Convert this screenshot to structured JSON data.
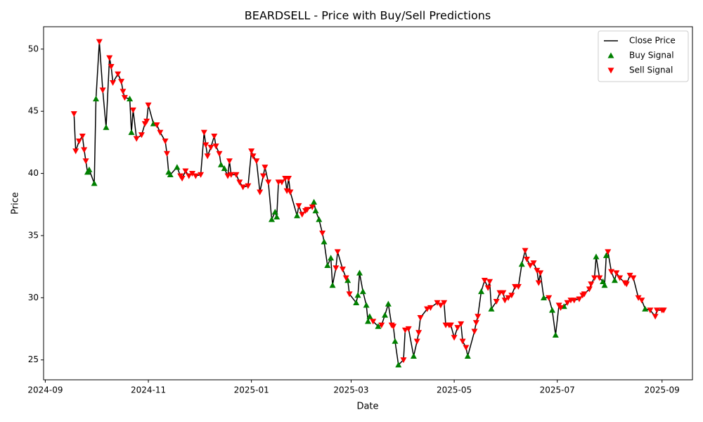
{
  "chart_data": {
    "type": "line",
    "title": "BEARDSELL - Price with Buy/Sell Predictions",
    "x_label": "Date",
    "y_label": "Price",
    "xlim": [
      "2024-08-31",
      "2025-09-19"
    ],
    "xticks": [
      {
        "value": "2024-09-01",
        "label": "2024-09"
      },
      {
        "value": "2024-11-01",
        "label": "2024-11"
      },
      {
        "value": "2025-01-01",
        "label": "2025-01"
      },
      {
        "value": "2025-03-01",
        "label": "2025-03"
      },
      {
        "value": "2025-05-01",
        "label": "2025-05"
      },
      {
        "value": "2025-07-01",
        "label": "2025-07"
      },
      {
        "value": "2025-09-01",
        "label": "2025-09"
      }
    ],
    "ylim": [
      23.4,
      51.8
    ],
    "yticks": [
      25,
      30,
      35,
      40,
      45,
      50
    ],
    "legend": "upper right",
    "grid": false,
    "series": [
      {
        "name": "Close Price",
        "type": "line",
        "color": "#000000",
        "x": [
          "2024-09-18",
          "2024-09-19",
          "2024-09-21",
          "2024-09-23",
          "2024-09-24",
          "2024-09-25",
          "2024-09-26",
          "2024-09-27",
          "2024-09-30",
          "2024-10-01",
          "2024-10-03",
          "2024-10-05",
          "2024-10-07",
          "2024-10-09",
          "2024-10-10",
          "2024-10-11",
          "2024-10-14",
          "2024-10-16",
          "2024-10-17",
          "2024-10-18",
          "2024-10-21",
          "2024-10-22",
          "2024-10-23",
          "2024-10-25",
          "2024-10-28",
          "2024-10-30",
          "2024-10-31",
          "2024-11-01",
          "2024-11-04",
          "2024-11-06",
          "2024-11-08",
          "2024-11-11",
          "2024-11-12",
          "2024-11-13",
          "2024-11-14",
          "2024-11-18",
          "2024-11-20",
          "2024-11-21",
          "2024-11-23",
          "2024-11-25",
          "2024-11-27",
          "2024-11-29",
          "2024-12-02",
          "2024-12-04",
          "2024-12-05",
          "2024-12-06",
          "2024-12-08",
          "2024-12-10",
          "2024-12-11",
          "2024-12-13",
          "2024-12-14",
          "2024-12-16",
          "2024-12-18",
          "2024-12-19",
          "2024-12-20",
          "2024-12-23",
          "2024-12-25",
          "2024-12-27",
          "2024-12-30",
          "2025-01-01",
          "2025-01-02",
          "2025-01-04",
          "2025-01-06",
          "2025-01-08",
          "2025-01-09",
          "2025-01-11",
          "2025-01-13",
          "2025-01-15",
          "2025-01-16",
          "2025-01-17",
          "2025-01-19",
          "2025-01-21",
          "2025-01-22",
          "2025-01-23",
          "2025-01-24",
          "2025-01-28",
          "2025-01-29",
          "2025-01-31",
          "2025-02-02",
          "2025-02-03",
          "2025-02-06",
          "2025-02-07",
          "2025-02-08",
          "2025-02-10",
          "2025-02-12",
          "2025-02-13",
          "2025-02-15",
          "2025-02-17",
          "2025-02-18",
          "2025-02-20",
          "2025-02-21",
          "2025-02-24",
          "2025-02-26",
          "2025-02-27",
          "2025-02-28",
          "2025-03-04",
          "2025-03-05",
          "2025-03-06",
          "2025-03-08",
          "2025-03-10",
          "2025-03-11",
          "2025-03-12",
          "2025-03-14",
          "2025-03-17",
          "2025-03-19",
          "2025-03-21",
          "2025-03-23",
          "2025-03-25",
          "2025-03-26",
          "2025-03-27",
          "2025-03-29",
          "2025-04-01",
          "2025-04-02",
          "2025-04-04",
          "2025-04-07",
          "2025-04-09",
          "2025-04-10",
          "2025-04-11",
          "2025-04-15",
          "2025-04-17",
          "2025-04-21",
          "2025-04-23",
          "2025-04-25",
          "2025-04-26",
          "2025-04-28",
          "2025-04-29",
          "2025-05-01",
          "2025-05-03",
          "2025-05-05",
          "2025-05-06",
          "2025-05-08",
          "2025-05-09",
          "2025-05-13",
          "2025-05-14",
          "2025-05-15",
          "2025-05-17",
          "2025-05-19",
          "2025-05-21",
          "2025-05-22",
          "2025-05-23",
          "2025-05-26",
          "2025-05-28",
          "2025-05-30",
          "2025-05-31",
          "2025-06-02",
          "2025-06-04",
          "2025-06-06",
          "2025-06-08",
          "2025-06-10",
          "2025-06-12",
          "2025-06-13",
          "2025-06-15",
          "2025-06-17",
          "2025-06-19",
          "2025-06-20",
          "2025-06-21",
          "2025-06-23",
          "2025-06-26",
          "2025-06-28",
          "2025-06-30",
          "2025-07-02",
          "2025-07-03",
          "2025-07-05",
          "2025-07-07",
          "2025-07-09",
          "2025-07-11",
          "2025-07-14",
          "2025-07-16",
          "2025-07-17",
          "2025-07-20",
          "2025-07-21",
          "2025-07-23",
          "2025-07-24",
          "2025-07-26",
          "2025-07-28",
          "2025-07-29",
          "2025-07-30",
          "2025-07-31",
          "2025-08-02",
          "2025-08-04",
          "2025-08-05",
          "2025-08-07",
          "2025-08-10",
          "2025-08-11",
          "2025-08-13",
          "2025-08-15",
          "2025-08-18",
          "2025-08-20",
          "2025-08-22",
          "2025-08-25",
          "2025-08-28",
          "2025-08-29",
          "2025-09-01",
          "2025-09-02"
        ],
        "values": [
          44.8,
          41.8,
          42.6,
          43.0,
          41.9,
          41.0,
          40.1,
          40.3,
          39.2,
          46.0,
          50.6,
          46.7,
          43.7,
          49.3,
          48.6,
          47.3,
          48.0,
          47.4,
          46.6,
          46.1,
          46.0,
          43.3,
          45.1,
          42.8,
          43.1,
          44.0,
          44.2,
          45.5,
          44.0,
          43.9,
          43.3,
          42.6,
          41.6,
          40.1,
          39.9,
          40.5,
          39.8,
          39.6,
          40.2,
          39.8,
          40.0,
          39.8,
          39.9,
          43.3,
          42.3,
          41.4,
          42.1,
          43.0,
          42.2,
          41.6,
          40.7,
          40.4,
          39.8,
          41.0,
          39.9,
          39.9,
          39.3,
          38.9,
          39.0,
          41.8,
          41.4,
          41.0,
          38.5,
          39.8,
          40.5,
          39.3,
          36.3,
          36.9,
          36.5,
          39.3,
          39.3,
          39.6,
          38.6,
          39.6,
          38.5,
          36.6,
          37.4,
          36.7,
          37.0,
          37.1,
          37.3,
          37.7,
          37.0,
          36.3,
          35.2,
          34.5,
          32.6,
          33.2,
          31.0,
          32.4,
          33.7,
          32.3,
          31.6,
          31.4,
          30.3,
          29.6,
          30.2,
          32.0,
          30.5,
          29.4,
          28.1,
          28.5,
          28.1,
          27.7,
          27.8,
          28.6,
          29.5,
          27.8,
          27.7,
          26.5,
          24.6,
          25.0,
          27.4,
          27.5,
          25.3,
          26.5,
          27.2,
          28.4,
          29.1,
          29.2,
          29.6,
          29.4,
          29.6,
          27.8,
          27.8,
          27.8,
          26.8,
          27.6,
          27.9,
          26.5,
          26.0,
          25.3,
          27.3,
          28.0,
          28.5,
          30.5,
          31.4,
          30.8,
          31.3,
          29.1,
          29.7,
          30.4,
          30.4,
          29.8,
          30.0,
          30.2,
          30.9,
          30.9,
          32.7,
          33.8,
          33.1,
          32.6,
          32.8,
          32.2,
          31.2,
          32.0,
          30.0,
          30.0,
          29.0,
          27.0,
          29.4,
          29.2,
          29.3,
          29.6,
          29.8,
          29.8,
          29.9,
          30.2,
          30.3,
          30.7,
          31.1,
          31.6,
          33.3,
          31.6,
          31.3,
          31.0,
          33.4,
          33.7,
          32.1,
          31.4,
          32.0,
          31.6,
          31.2,
          31.1,
          31.8,
          31.6,
          30.0,
          29.8,
          29.1,
          29.0,
          28.5,
          29.0,
          29.0,
          29.0
        ]
      },
      {
        "name": "Buy Signal",
        "type": "scatter",
        "marker": "up",
        "color": "#008000",
        "x": [
          "2024-09-26",
          "2024-09-27",
          "2024-09-30",
          "2024-10-01",
          "2024-10-07",
          "2024-10-21",
          "2024-10-22",
          "2024-11-04",
          "2024-11-13",
          "2024-11-14",
          "2024-11-18",
          "2024-12-14",
          "2024-12-16",
          "2025-01-13",
          "2025-01-15",
          "2025-01-16",
          "2025-01-28",
          "2025-02-07",
          "2025-02-08",
          "2025-02-10",
          "2025-02-13",
          "2025-02-15",
          "2025-02-17",
          "2025-02-18",
          "2025-02-27",
          "2025-03-04",
          "2025-03-05",
          "2025-03-06",
          "2025-03-08",
          "2025-03-10",
          "2025-03-11",
          "2025-03-12",
          "2025-03-17",
          "2025-03-21",
          "2025-03-23",
          "2025-03-27",
          "2025-03-29",
          "2025-04-07",
          "2025-05-09",
          "2025-05-17",
          "2025-05-23",
          "2025-06-10",
          "2025-06-23",
          "2025-06-28",
          "2025-06-30",
          "2025-07-05",
          "2025-07-24",
          "2025-07-28",
          "2025-07-29",
          "2025-07-30",
          "2025-08-04",
          "2025-08-22"
        ],
        "values": [
          40.1,
          40.3,
          39.2,
          46.0,
          43.7,
          46.0,
          43.3,
          44.0,
          40.1,
          39.9,
          40.5,
          40.7,
          40.4,
          36.3,
          36.9,
          36.5,
          36.6,
          37.7,
          37.0,
          36.3,
          34.5,
          32.6,
          33.2,
          31.0,
          31.4,
          29.6,
          30.2,
          32.0,
          30.5,
          29.4,
          28.1,
          28.5,
          27.7,
          28.6,
          29.5,
          26.5,
          24.6,
          25.3,
          25.3,
          30.5,
          29.1,
          32.7,
          30.0,
          29.0,
          27.0,
          29.3,
          33.3,
          31.3,
          31.0,
          33.4,
          31.4,
          29.1
        ]
      },
      {
        "name": "Sell Signal",
        "type": "scatter",
        "marker": "down",
        "color": "#ff0000",
        "x": [
          "2024-09-18",
          "2024-09-19",
          "2024-09-21",
          "2024-09-23",
          "2024-09-24",
          "2024-09-25",
          "2024-10-03",
          "2024-10-05",
          "2024-10-09",
          "2024-10-10",
          "2024-10-11",
          "2024-10-14",
          "2024-10-16",
          "2024-10-17",
          "2024-10-18",
          "2024-10-23",
          "2024-10-25",
          "2024-10-28",
          "2024-10-30",
          "2024-10-31",
          "2024-11-01",
          "2024-11-06",
          "2024-11-08",
          "2024-11-11",
          "2024-11-12",
          "2024-11-20",
          "2024-11-21",
          "2024-11-23",
          "2024-11-25",
          "2024-11-27",
          "2024-11-29",
          "2024-12-02",
          "2024-12-04",
          "2024-12-05",
          "2024-12-06",
          "2024-12-08",
          "2024-12-10",
          "2024-12-11",
          "2024-12-13",
          "2024-12-18",
          "2024-12-19",
          "2024-12-20",
          "2024-12-23",
          "2024-12-25",
          "2024-12-27",
          "2024-12-30",
          "2025-01-01",
          "2025-01-02",
          "2025-01-04",
          "2025-01-06",
          "2025-01-08",
          "2025-01-09",
          "2025-01-11",
          "2025-01-17",
          "2025-01-19",
          "2025-01-21",
          "2025-01-22",
          "2025-01-23",
          "2025-01-24",
          "2025-01-29",
          "2025-01-31",
          "2025-02-02",
          "2025-02-03",
          "2025-02-06",
          "2025-02-12",
          "2025-02-20",
          "2025-02-21",
          "2025-02-24",
          "2025-02-26",
          "2025-02-28",
          "2025-03-14",
          "2025-03-19",
          "2025-03-25",
          "2025-03-26",
          "2025-04-01",
          "2025-04-02",
          "2025-04-04",
          "2025-04-09",
          "2025-04-10",
          "2025-04-11",
          "2025-04-15",
          "2025-04-17",
          "2025-04-21",
          "2025-04-23",
          "2025-04-25",
          "2025-04-26",
          "2025-04-28",
          "2025-04-29",
          "2025-05-01",
          "2025-05-03",
          "2025-05-05",
          "2025-05-06",
          "2025-05-08",
          "2025-05-13",
          "2025-05-14",
          "2025-05-15",
          "2025-05-19",
          "2025-05-21",
          "2025-05-22",
          "2025-05-26",
          "2025-05-28",
          "2025-05-30",
          "2025-05-31",
          "2025-06-02",
          "2025-06-04",
          "2025-06-06",
          "2025-06-08",
          "2025-06-12",
          "2025-06-13",
          "2025-06-15",
          "2025-06-17",
          "2025-06-19",
          "2025-06-20",
          "2025-06-21",
          "2025-06-26",
          "2025-07-02",
          "2025-07-03",
          "2025-07-07",
          "2025-07-09",
          "2025-07-11",
          "2025-07-14",
          "2025-07-16",
          "2025-07-17",
          "2025-07-20",
          "2025-07-21",
          "2025-07-23",
          "2025-07-26",
          "2025-07-31",
          "2025-08-02",
          "2025-08-05",
          "2025-08-07",
          "2025-08-10",
          "2025-08-11",
          "2025-08-13",
          "2025-08-15",
          "2025-08-18",
          "2025-08-20",
          "2025-08-25",
          "2025-08-28",
          "2025-08-29",
          "2025-09-01",
          "2025-09-02"
        ],
        "values": [
          44.8,
          41.8,
          42.6,
          43.0,
          41.9,
          41.0,
          50.6,
          46.7,
          49.3,
          48.6,
          47.3,
          48.0,
          47.4,
          46.6,
          46.1,
          45.1,
          42.8,
          43.1,
          44.0,
          44.2,
          45.5,
          43.9,
          43.3,
          42.6,
          41.6,
          39.8,
          39.6,
          40.2,
          39.8,
          40.0,
          39.8,
          39.9,
          43.3,
          42.3,
          41.4,
          42.1,
          43.0,
          42.2,
          41.6,
          39.8,
          41.0,
          39.9,
          39.9,
          39.3,
          38.9,
          39.0,
          41.8,
          41.4,
          41.0,
          38.5,
          39.8,
          40.5,
          39.3,
          39.3,
          39.3,
          39.6,
          38.6,
          39.6,
          38.5,
          37.4,
          36.7,
          37.0,
          37.1,
          37.3,
          35.2,
          32.4,
          33.7,
          32.3,
          31.6,
          30.3,
          28.1,
          27.8,
          27.8,
          27.7,
          25.0,
          27.4,
          27.5,
          26.5,
          27.2,
          28.4,
          29.1,
          29.2,
          29.6,
          29.4,
          29.6,
          27.8,
          27.8,
          27.8,
          26.8,
          27.6,
          27.9,
          26.5,
          26.0,
          27.3,
          28.0,
          28.5,
          31.4,
          30.8,
          31.3,
          29.7,
          30.4,
          30.4,
          29.8,
          30.0,
          30.2,
          30.9,
          30.9,
          33.8,
          33.1,
          32.6,
          32.8,
          32.2,
          31.2,
          32.0,
          30.0,
          29.4,
          29.2,
          29.6,
          29.8,
          29.8,
          29.9,
          30.2,
          30.3,
          30.7,
          31.1,
          31.6,
          31.6,
          33.7,
          32.1,
          32.0,
          31.6,
          31.2,
          31.1,
          31.8,
          31.6,
          30.0,
          29.8,
          29.0,
          28.5,
          29.0,
          29.0,
          29.0
        ]
      }
    ]
  }
}
